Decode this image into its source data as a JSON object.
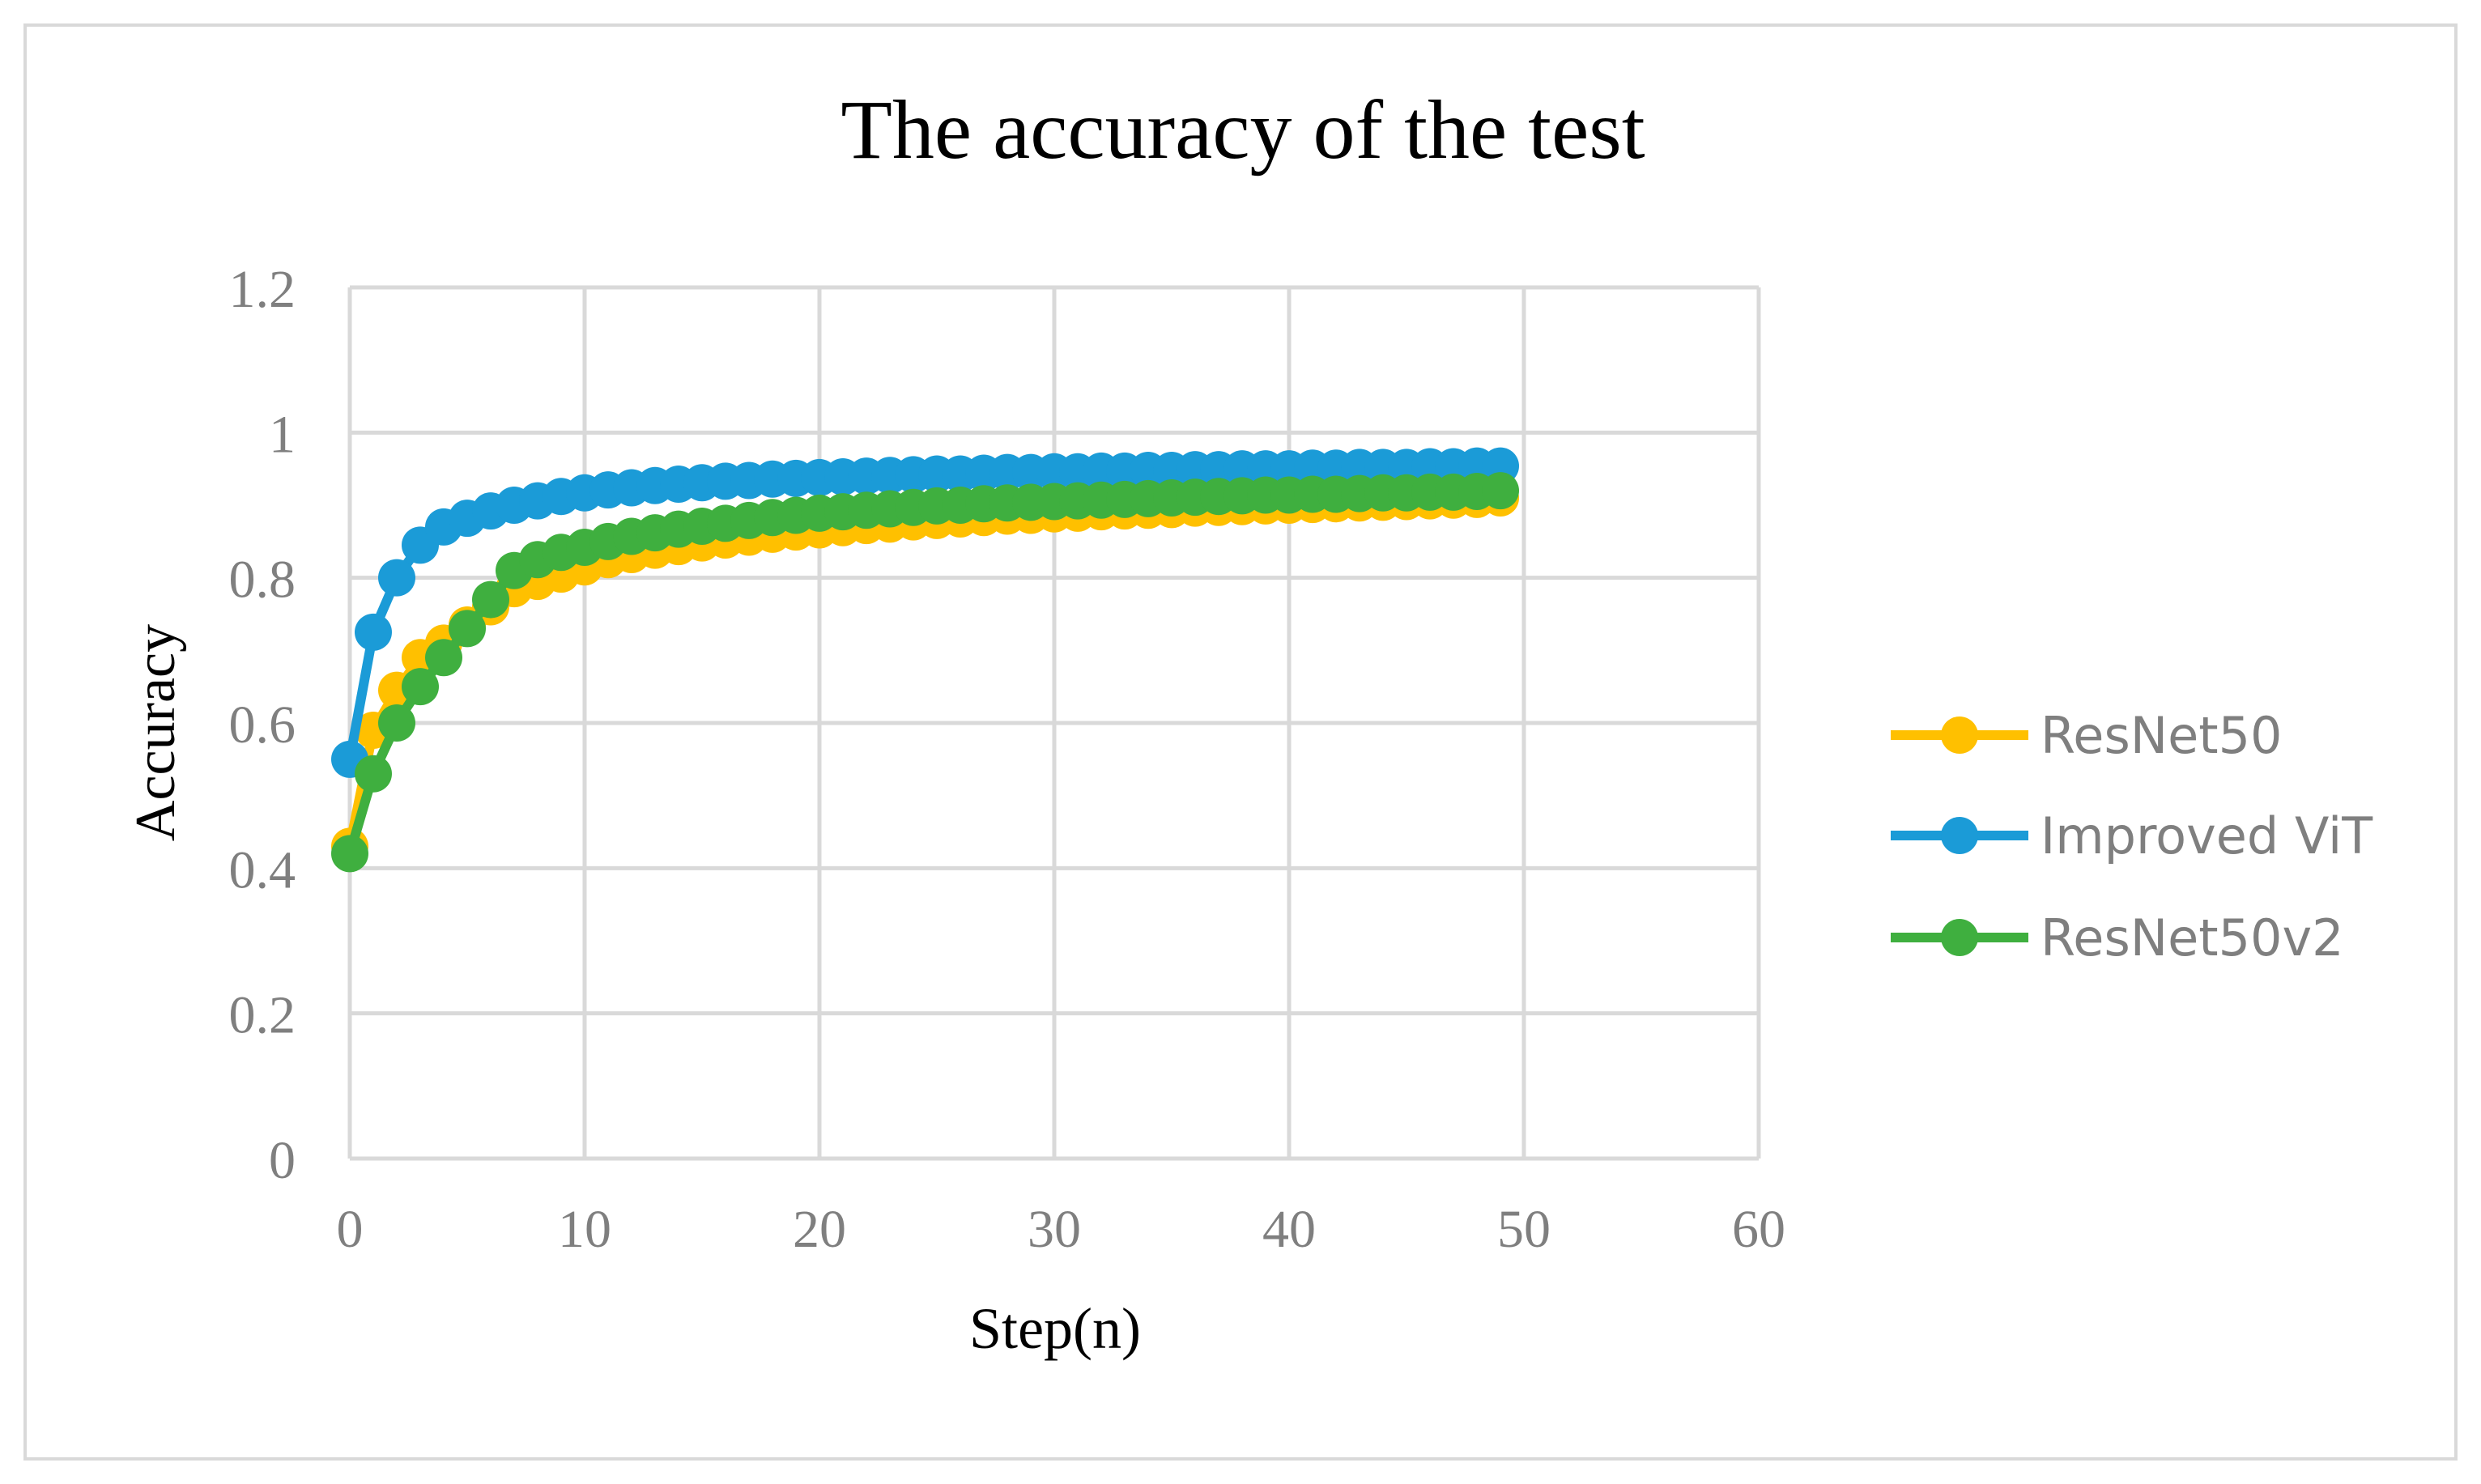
{
  "chart_data": {
    "type": "line",
    "title": "The accuracy of the test",
    "xlabel": "Step(n)",
    "ylabel": "Accuracy",
    "xlim": [
      0,
      60
    ],
    "ylim": [
      0,
      1.2
    ],
    "x_ticks": [
      0,
      10,
      20,
      30,
      40,
      50,
      60
    ],
    "y_ticks": [
      0,
      0.2,
      0.4,
      0.6,
      0.8,
      1,
      1.2
    ],
    "x_tick_labels": [
      "0",
      "10",
      "20",
      "30",
      "40",
      "50",
      "60"
    ],
    "y_tick_labels": [
      "0",
      "0.2",
      "0.4",
      "0.6",
      "0.8",
      "1",
      "1.2"
    ],
    "grid": true,
    "legend_position": "right",
    "x": [
      0,
      1,
      2,
      3,
      4,
      5,
      6,
      7,
      8,
      9,
      10,
      11,
      12,
      13,
      14,
      15,
      16,
      17,
      18,
      19,
      20,
      21,
      22,
      23,
      24,
      25,
      26,
      27,
      28,
      29,
      30,
      31,
      32,
      33,
      34,
      35,
      36,
      37,
      38,
      39,
      40,
      41,
      42,
      43,
      44,
      45,
      46,
      47,
      48,
      49
    ],
    "series": [
      {
        "name": "ResNet50",
        "color": "#FFC000",
        "values": [
          0.43,
          0.59,
          0.645,
          0.69,
          0.71,
          0.735,
          0.76,
          0.785,
          0.795,
          0.805,
          0.815,
          0.825,
          0.832,
          0.838,
          0.843,
          0.848,
          0.852,
          0.856,
          0.86,
          0.863,
          0.866,
          0.869,
          0.872,
          0.874,
          0.877,
          0.879,
          0.881,
          0.883,
          0.885,
          0.886,
          0.888,
          0.889,
          0.891,
          0.892,
          0.893,
          0.894,
          0.896,
          0.897,
          0.898,
          0.899,
          0.9,
          0.901,
          0.902,
          0.903,
          0.904,
          0.905,
          0.906,
          0.907,
          0.908,
          0.91
        ]
      },
      {
        "name": "Improved ViT",
        "color": "#1B9BD7",
        "values": [
          0.55,
          0.725,
          0.8,
          0.845,
          0.87,
          0.882,
          0.892,
          0.9,
          0.906,
          0.912,
          0.917,
          0.921,
          0.924,
          0.927,
          0.929,
          0.931,
          0.933,
          0.934,
          0.936,
          0.937,
          0.938,
          0.939,
          0.94,
          0.941,
          0.942,
          0.943,
          0.943,
          0.944,
          0.945,
          0.945,
          0.946,
          0.946,
          0.947,
          0.947,
          0.948,
          0.948,
          0.949,
          0.949,
          0.95,
          0.95,
          0.95,
          0.951,
          0.951,
          0.952,
          0.952,
          0.952,
          0.953,
          0.953,
          0.954,
          0.954
        ]
      },
      {
        "name": "ResNet50v2",
        "color": "#3FAF3F",
        "values": [
          0.42,
          0.53,
          0.6,
          0.65,
          0.69,
          0.73,
          0.77,
          0.81,
          0.825,
          0.835,
          0.842,
          0.85,
          0.857,
          0.862,
          0.867,
          0.871,
          0.875,
          0.879,
          0.883,
          0.886,
          0.889,
          0.891,
          0.893,
          0.895,
          0.897,
          0.899,
          0.9,
          0.902,
          0.903,
          0.904,
          0.905,
          0.906,
          0.907,
          0.908,
          0.909,
          0.91,
          0.911,
          0.912,
          0.913,
          0.914,
          0.914,
          0.915,
          0.915,
          0.916,
          0.917,
          0.917,
          0.918,
          0.918,
          0.919,
          0.92
        ]
      }
    ]
  }
}
